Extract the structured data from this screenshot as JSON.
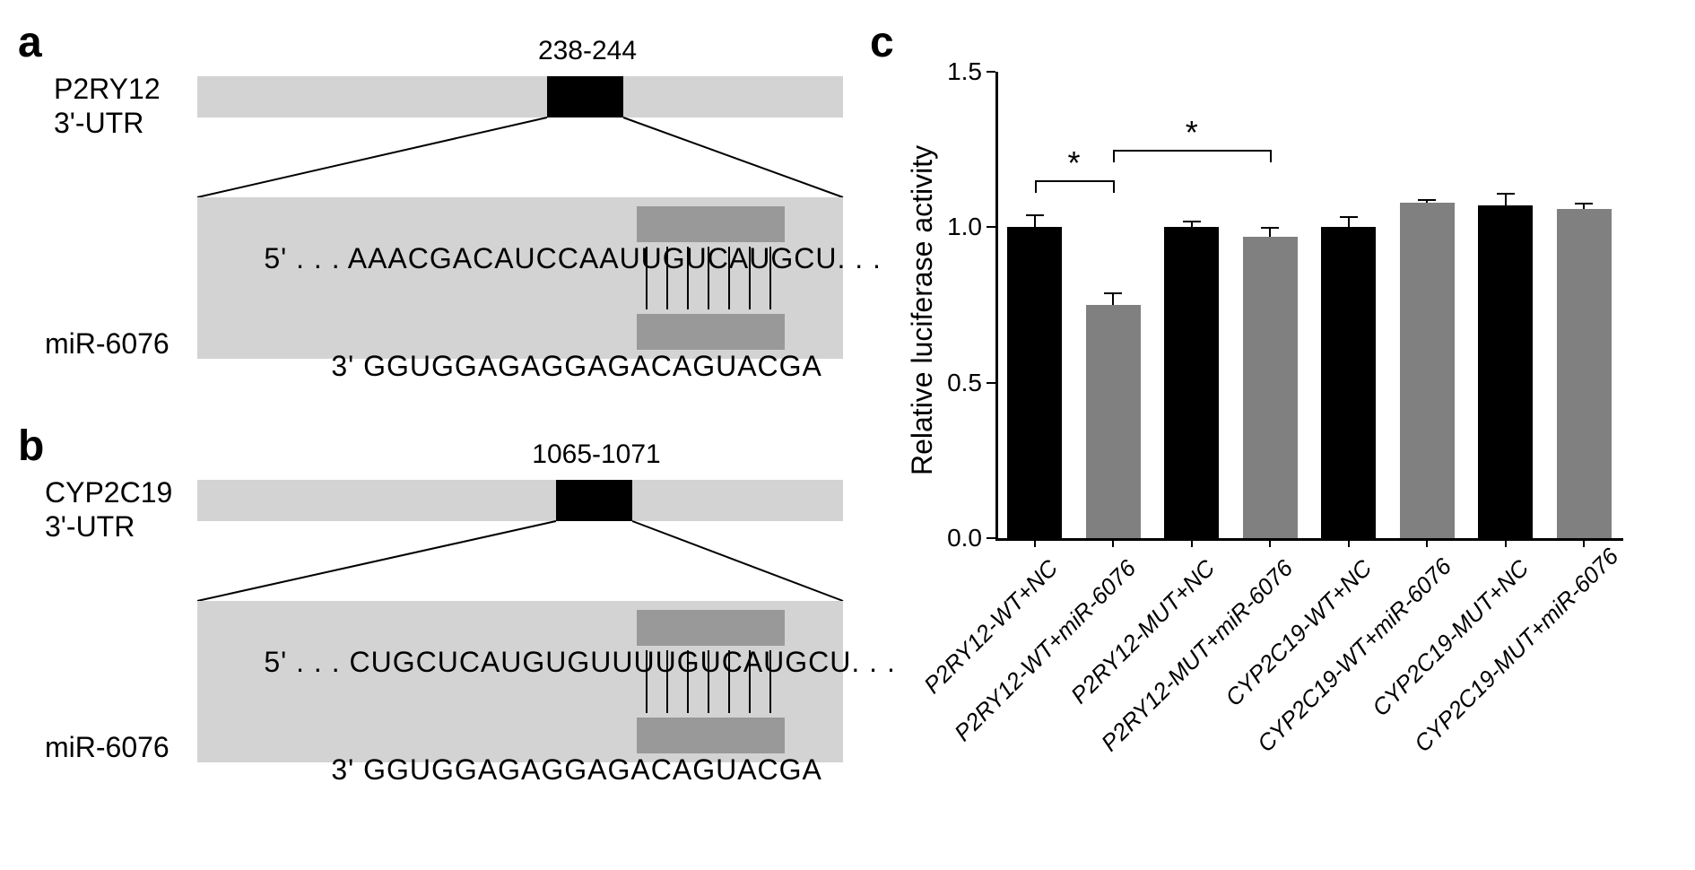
{
  "panel_a": {
    "label": "a",
    "gene": "P2RY12",
    "sublabel": "3'-UTR",
    "position": "238-244",
    "mirna": "miR-6076",
    "seq_5prime_prefix": "5' . . . AAACGACAUCCAAUU",
    "seq_5prime_seed": "GUCAUGC",
    "seq_5prime_suffix": "U. . .",
    "seq_3prime_prefix": "3' GGUGGAGAGGAGA",
    "seq_3prime_seed": "CAGUACG",
    "seq_3prime_suffix": "A",
    "colors": {
      "bar_bg": "#d3d3d3",
      "box_bg": "#000000",
      "seed_bg": "#999999"
    }
  },
  "panel_b": {
    "label": "b",
    "gene": "CYP2C19",
    "sublabel": "3'-UTR",
    "position": "1065-1071",
    "mirna": "miR-6076",
    "seq_5prime_prefix": "5' . . . CUGCUCAUGUGUUUU",
    "seq_5prime_seed": "GUCAUGC",
    "seq_5prime_suffix": "U. . .",
    "seq_3prime_prefix": "3' GGUGGAGAGGAGA",
    "seq_3prime_seed": "CAGUACG",
    "seq_3prime_suffix": "A"
  },
  "panel_c": {
    "label": "c",
    "chart": {
      "type": "bar",
      "ylabel": "Relative luciferase activity",
      "ylim": [
        0.0,
        1.5
      ],
      "yticks": [
        0.0,
        0.5,
        1.0,
        1.5
      ],
      "ytick_labels": [
        "0.0",
        "0.5",
        "1.0",
        "1.5"
      ],
      "categories": [
        "P2RY12-WT+NC",
        "P2RY12-WT+miR-6076",
        "P2RY12-MUT+NC",
        "P2RY12-MUT+miR-6076",
        "CYP2C19-WT+NC",
        "CYP2C19-WT+miR-6076",
        "CYP2C19-MUT+NC",
        "CYP2C19-MUT+miR-6076"
      ],
      "values": [
        1.0,
        0.75,
        1.0,
        0.97,
        1.0,
        1.08,
        1.07,
        1.06
      ],
      "errors": [
        0.04,
        0.04,
        0.02,
        0.03,
        0.035,
        0.01,
        0.04,
        0.02
      ],
      "bar_colors": [
        "#000000",
        "#808080",
        "#000000",
        "#808080",
        "#000000",
        "#808080",
        "#000000",
        "#808080"
      ],
      "bar_width": 0.7,
      "background_color": "#ffffff",
      "axis_color": "#000000",
      "label_fontsize": 26,
      "ylabel_fontsize": 32,
      "tick_fontsize": 28,
      "significance": [
        {
          "from": 0,
          "to": 1,
          "marker": "*",
          "y": 1.15
        },
        {
          "from": 1,
          "to": 3,
          "marker": "*",
          "y": 1.25
        }
      ]
    }
  }
}
